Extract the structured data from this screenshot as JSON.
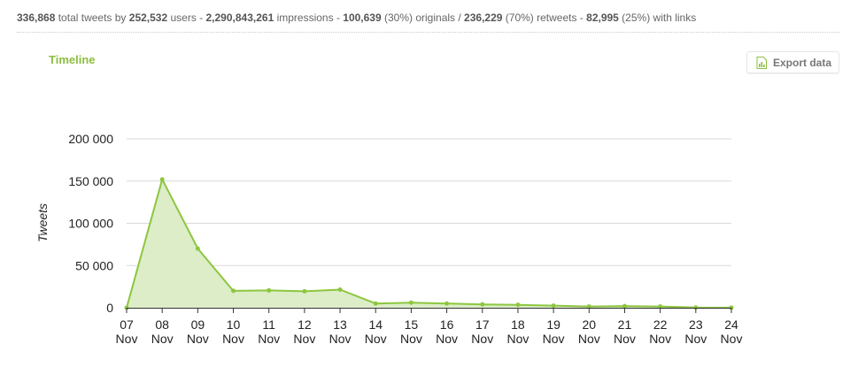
{
  "stats": {
    "total_tweets": "336,868",
    "total_tweets_suffix": " total tweets by ",
    "users": "252,532",
    "users_suffix": " users - ",
    "impressions": "2,290,843,261",
    "impressions_suffix": " impressions - ",
    "originals": "100,639",
    "originals_suffix": " (30%) originals / ",
    "retweets": "236,229",
    "retweets_suffix": " (70%) retweets - ",
    "links": "82,995",
    "links_suffix": " (25%) with links"
  },
  "section_title": "Timeline",
  "export_button": {
    "label": "Export data",
    "icon": "spreadsheet-chart-icon"
  },
  "colors": {
    "accent": "#8cbf3f",
    "line": "#8dc63f",
    "area": "#dcedc8",
    "grid": "#d9d9d9"
  },
  "chart_data": {
    "type": "area",
    "title": "",
    "xlabel": "",
    "ylabel": "Tweets",
    "categories": [
      "07 Nov",
      "08 Nov",
      "09 Nov",
      "10 Nov",
      "11 Nov",
      "12 Nov",
      "13 Nov",
      "14 Nov",
      "15 Nov",
      "16 Nov",
      "17 Nov",
      "18 Nov",
      "19 Nov",
      "20 Nov",
      "21 Nov",
      "22 Nov",
      "23 Nov",
      "24 Nov"
    ],
    "x_tick_labels": [
      [
        "07",
        "Nov"
      ],
      [
        "08",
        "Nov"
      ],
      [
        "09",
        "Nov"
      ],
      [
        "10",
        "Nov"
      ],
      [
        "11",
        "Nov"
      ],
      [
        "12",
        "Nov"
      ],
      [
        "13",
        "Nov"
      ],
      [
        "14",
        "Nov"
      ],
      [
        "15",
        "Nov"
      ],
      [
        "16",
        "Nov"
      ],
      [
        "17",
        "Nov"
      ],
      [
        "18",
        "Nov"
      ],
      [
        "19",
        "Nov"
      ],
      [
        "20",
        "Nov"
      ],
      [
        "21",
        "Nov"
      ],
      [
        "22",
        "Nov"
      ],
      [
        "23",
        "Nov"
      ],
      [
        "24",
        "Nov"
      ]
    ],
    "values": [
      0,
      152000,
      70000,
      20000,
      20500,
      19500,
      21500,
      5000,
      6000,
      5000,
      4000,
      3500,
      2500,
      1500,
      2000,
      1500,
      300,
      100
    ],
    "y_ticks": [
      0,
      50000,
      100000,
      150000,
      200000
    ],
    "y_tick_labels": [
      "0",
      "50 000",
      "100 000",
      "150 000",
      "200 000"
    ],
    "ylim": [
      0,
      200000
    ],
    "grid": true,
    "legend": "none"
  }
}
